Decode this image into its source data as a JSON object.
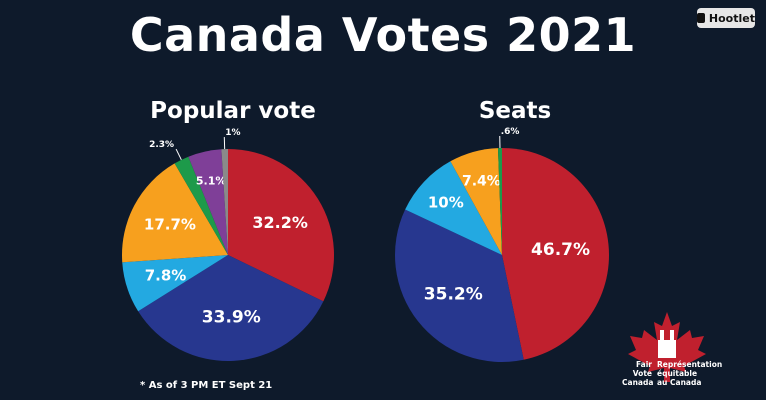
{
  "header": {
    "title": "Canada Votes 2021"
  },
  "badge": {
    "label": "Hootlet",
    "icon": "owl-icon"
  },
  "footnote": "* As of 3 PM ET Sept 21",
  "logo": {
    "en": [
      "Fair",
      "Vote",
      "Canada"
    ],
    "fr": [
      "Représentation",
      "équitable",
      "au Canada"
    ],
    "icon": "maple-leaf-icon"
  },
  "chart_data": [
    {
      "type": "pie",
      "title": "Popular vote",
      "slices": [
        {
          "value": 32.2,
          "label": "32.2%",
          "color": "#c0202e"
        },
        {
          "value": 33.9,
          "label": "33.9%",
          "color": "#27378f"
        },
        {
          "value": 7.8,
          "label": "7.8%",
          "color": "#23a9e1"
        },
        {
          "value": 17.7,
          "label": "17.7%",
          "color": "#f7a01e"
        },
        {
          "value": 2.3,
          "label": "2.3%",
          "color": "#1d9a4a"
        },
        {
          "value": 5.1,
          "label": "5.1%",
          "color": "#7f3f98"
        },
        {
          "value": 1,
          "label": "1%",
          "color": "#8a8a8a"
        }
      ]
    },
    {
      "type": "pie",
      "title": "Seats",
      "slices": [
        {
          "value": 46.7,
          "label": "46.7%",
          "color": "#c0202e"
        },
        {
          "value": 35.2,
          "label": "35.2%",
          "color": "#27378f"
        },
        {
          "value": 10,
          "label": "10%",
          "color": "#23a9e1"
        },
        {
          "value": 7.4,
          "label": "7.4%",
          "color": "#f7a01e"
        },
        {
          "value": 0.6,
          "label": ".6%",
          "color": "#1d9a4a"
        }
      ]
    }
  ]
}
